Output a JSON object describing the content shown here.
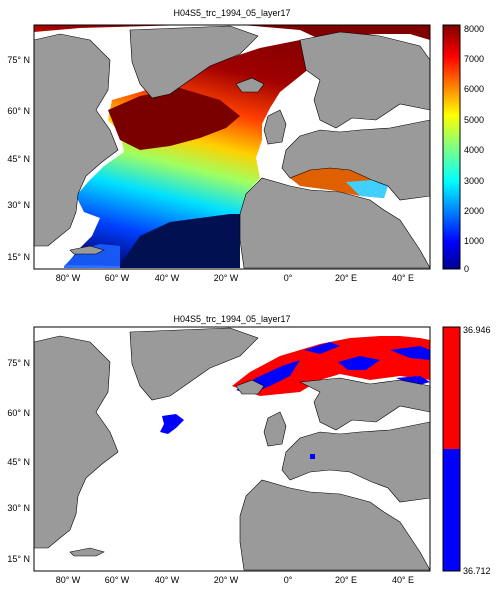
{
  "panels": [
    {
      "title": "H04S5_trc_1994_05_layer17",
      "colorbar": {
        "type": "continuous",
        "ticks": [
          "8000",
          "7000",
          "6000",
          "5000",
          "4000",
          "3000",
          "2000",
          "1000",
          "0"
        ],
        "range": [
          0,
          8000
        ]
      }
    },
    {
      "title": "H04S5_trc_1994_05_layer17",
      "colorbar": {
        "type": "binary",
        "ticks": [
          "36.946",
          "36.712"
        ],
        "colors": {
          "high": "#ff0000",
          "low": "#0000ff"
        }
      }
    }
  ],
  "map_axes": {
    "lat_labels": [
      "75° N",
      "60° N",
      "45° N",
      "30° N",
      "15° N"
    ],
    "lon_labels": [
      "80° W",
      "60° W",
      "40° W",
      "20° W",
      "0°",
      "20° E",
      "40° E"
    ]
  },
  "colors": {
    "land": "#9a9a9a",
    "ocean_missing": "#ffffff"
  }
}
